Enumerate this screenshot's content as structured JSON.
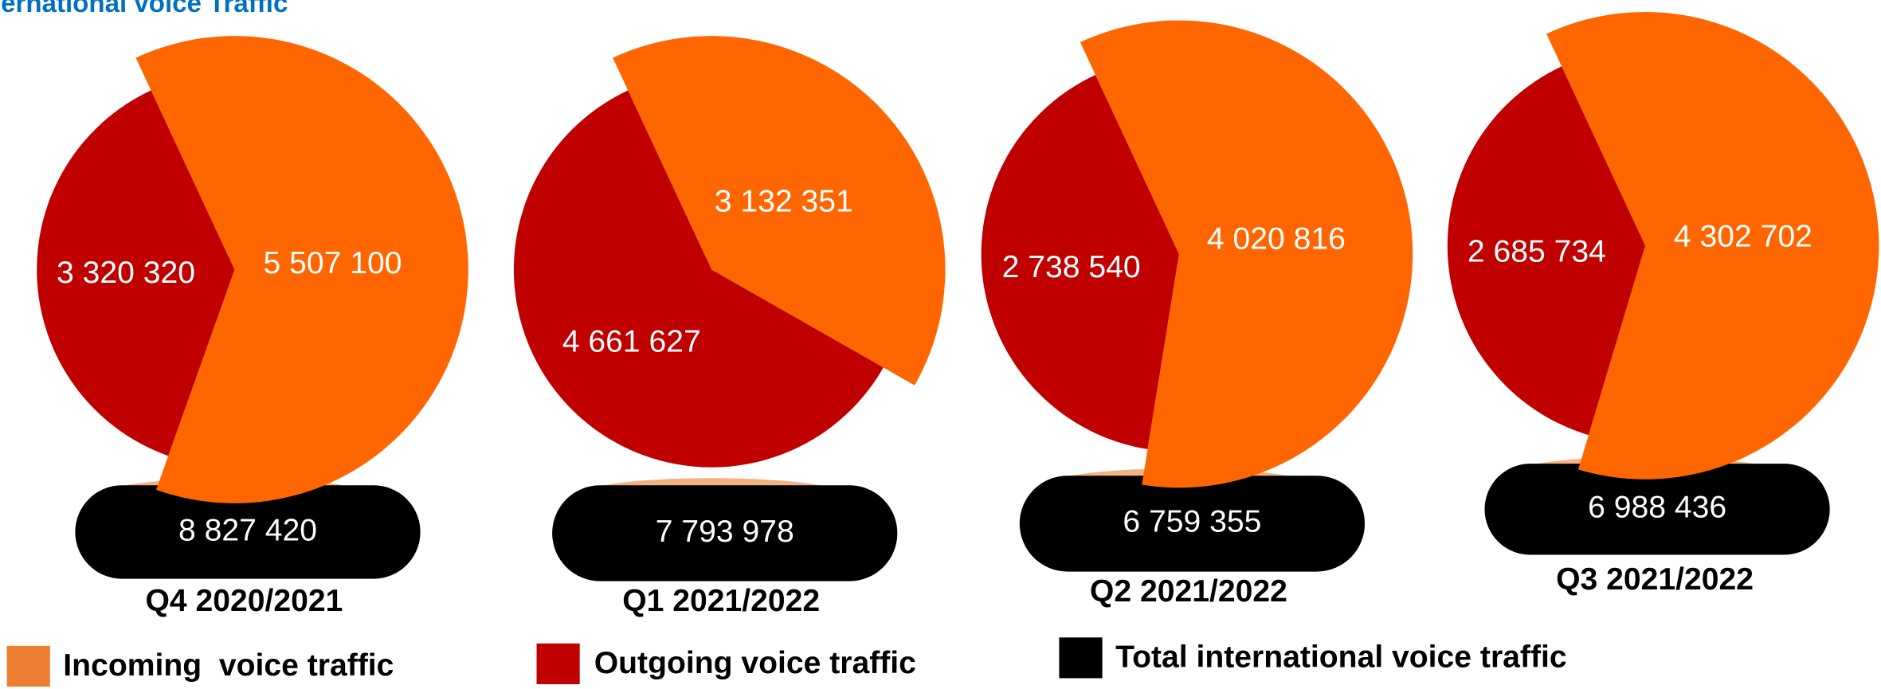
{
  "chart_data": {
    "type": "pie",
    "title": "ernational voice Traffic",
    "series": [
      {
        "name": "Incoming  voice traffic",
        "color": "#ff6600",
        "legend_color": "#ed7d31"
      },
      {
        "name": "Outgoing voice traffic",
        "color": "#c00000",
        "legend_color": "#c00000"
      }
    ],
    "total": {
      "name": "Total international voice traffic",
      "color": "#000000"
    },
    "pies": [
      {
        "label": "Q4 2020/2021",
        "values": [
          5507100,
          3320320
        ],
        "value_labels": [
          "5 507 100",
          "3 320 320"
        ],
        "total": 8827420,
        "total_label": "8 827 420"
      },
      {
        "label": "Q1 2021/2022",
        "values": [
          3132351,
          4661627
        ],
        "value_labels": [
          "3 132 351",
          "4 661 627"
        ],
        "total": 7793978,
        "total_label": "7 793 978"
      },
      {
        "label": "Q2 2021/2022",
        "values": [
          4020816,
          2738540
        ],
        "value_labels": [
          "4 020 816",
          "2 738 540"
        ],
        "total": 6759355,
        "total_label": "6 759 355"
      },
      {
        "label": "Q3 2021/2022",
        "values": [
          4302702,
          2685734
        ],
        "value_labels": [
          "4 302 702",
          "2 685 734"
        ],
        "total": 6988436,
        "total_label": "6 988 436"
      }
    ]
  }
}
